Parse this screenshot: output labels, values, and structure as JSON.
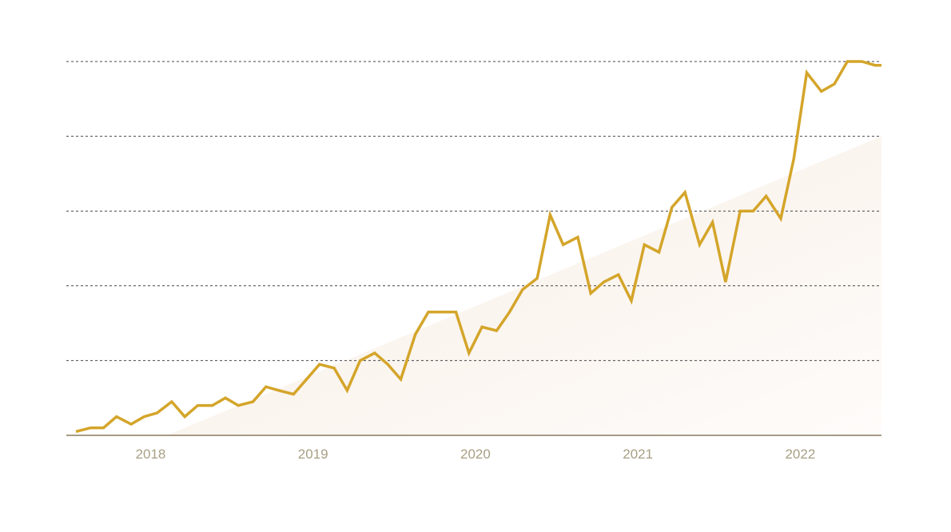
{
  "chart_data": {
    "type": "line",
    "title": "",
    "xlabel": "",
    "ylabel": "",
    "x_tick_labels": [
      "2018",
      "2019",
      "2020",
      "2021",
      "2022"
    ],
    "x_tick_positions": [
      2018.0,
      2019.0,
      2020.0,
      2021.0,
      2022.0
    ],
    "xlim": [
      2017.54,
      2022.5
    ],
    "ylim": [
      0,
      100
    ],
    "y_gridlines": [
      20,
      40,
      60,
      80,
      100
    ],
    "y_tick_labels_shown": false,
    "grid": "horizontal dashed",
    "background_trend": {
      "x": [
        2018.1,
        2022.5
      ],
      "y": [
        0,
        80
      ]
    },
    "series": [
      {
        "x": [
          2017.54,
          2017.63,
          2017.71,
          2017.79,
          2017.88,
          2017.96,
          2018.04,
          2018.13,
          2018.21,
          2018.29,
          2018.38,
          2018.46,
          2018.54,
          2018.63,
          2018.71,
          2018.79,
          2018.88,
          2018.96,
          2019.04,
          2019.13,
          2019.21,
          2019.29,
          2019.38,
          2019.46,
          2019.54,
          2019.63,
          2019.71,
          2019.79,
          2019.88,
          2019.96,
          2020.04,
          2020.13,
          2020.21,
          2020.29,
          2020.38,
          2020.46,
          2020.54,
          2020.63,
          2020.71,
          2020.79,
          2020.88,
          2020.96,
          2021.04,
          2021.13,
          2021.21,
          2021.29,
          2021.38,
          2021.46,
          2021.54,
          2021.63,
          2021.71,
          2021.79,
          2021.88,
          2021.96,
          2022.04,
          2022.13,
          2022.21,
          2022.29,
          2022.38,
          2022.46,
          2022.5
        ],
        "y": [
          1,
          2,
          2,
          5,
          3,
          5,
          6,
          9,
          5,
          8,
          8,
          10,
          8,
          9,
          13,
          12,
          11,
          15,
          19,
          18,
          12,
          20,
          22,
          19,
          15,
          27,
          33,
          33,
          33,
          22,
          29,
          28,
          33,
          39,
          42,
          59,
          51,
          53,
          38,
          41,
          43,
          36,
          51,
          49,
          61,
          65,
          51,
          57,
          41,
          60,
          60,
          64,
          58,
          74,
          97,
          92,
          94,
          100,
          100,
          99,
          99
        ]
      }
    ],
    "colors": {
      "line": "#d4a52a",
      "grid": "#444444",
      "axis": "#8a7a5e",
      "tick_label": "#a89f84",
      "trend_fill": "#f6e8dc"
    }
  }
}
